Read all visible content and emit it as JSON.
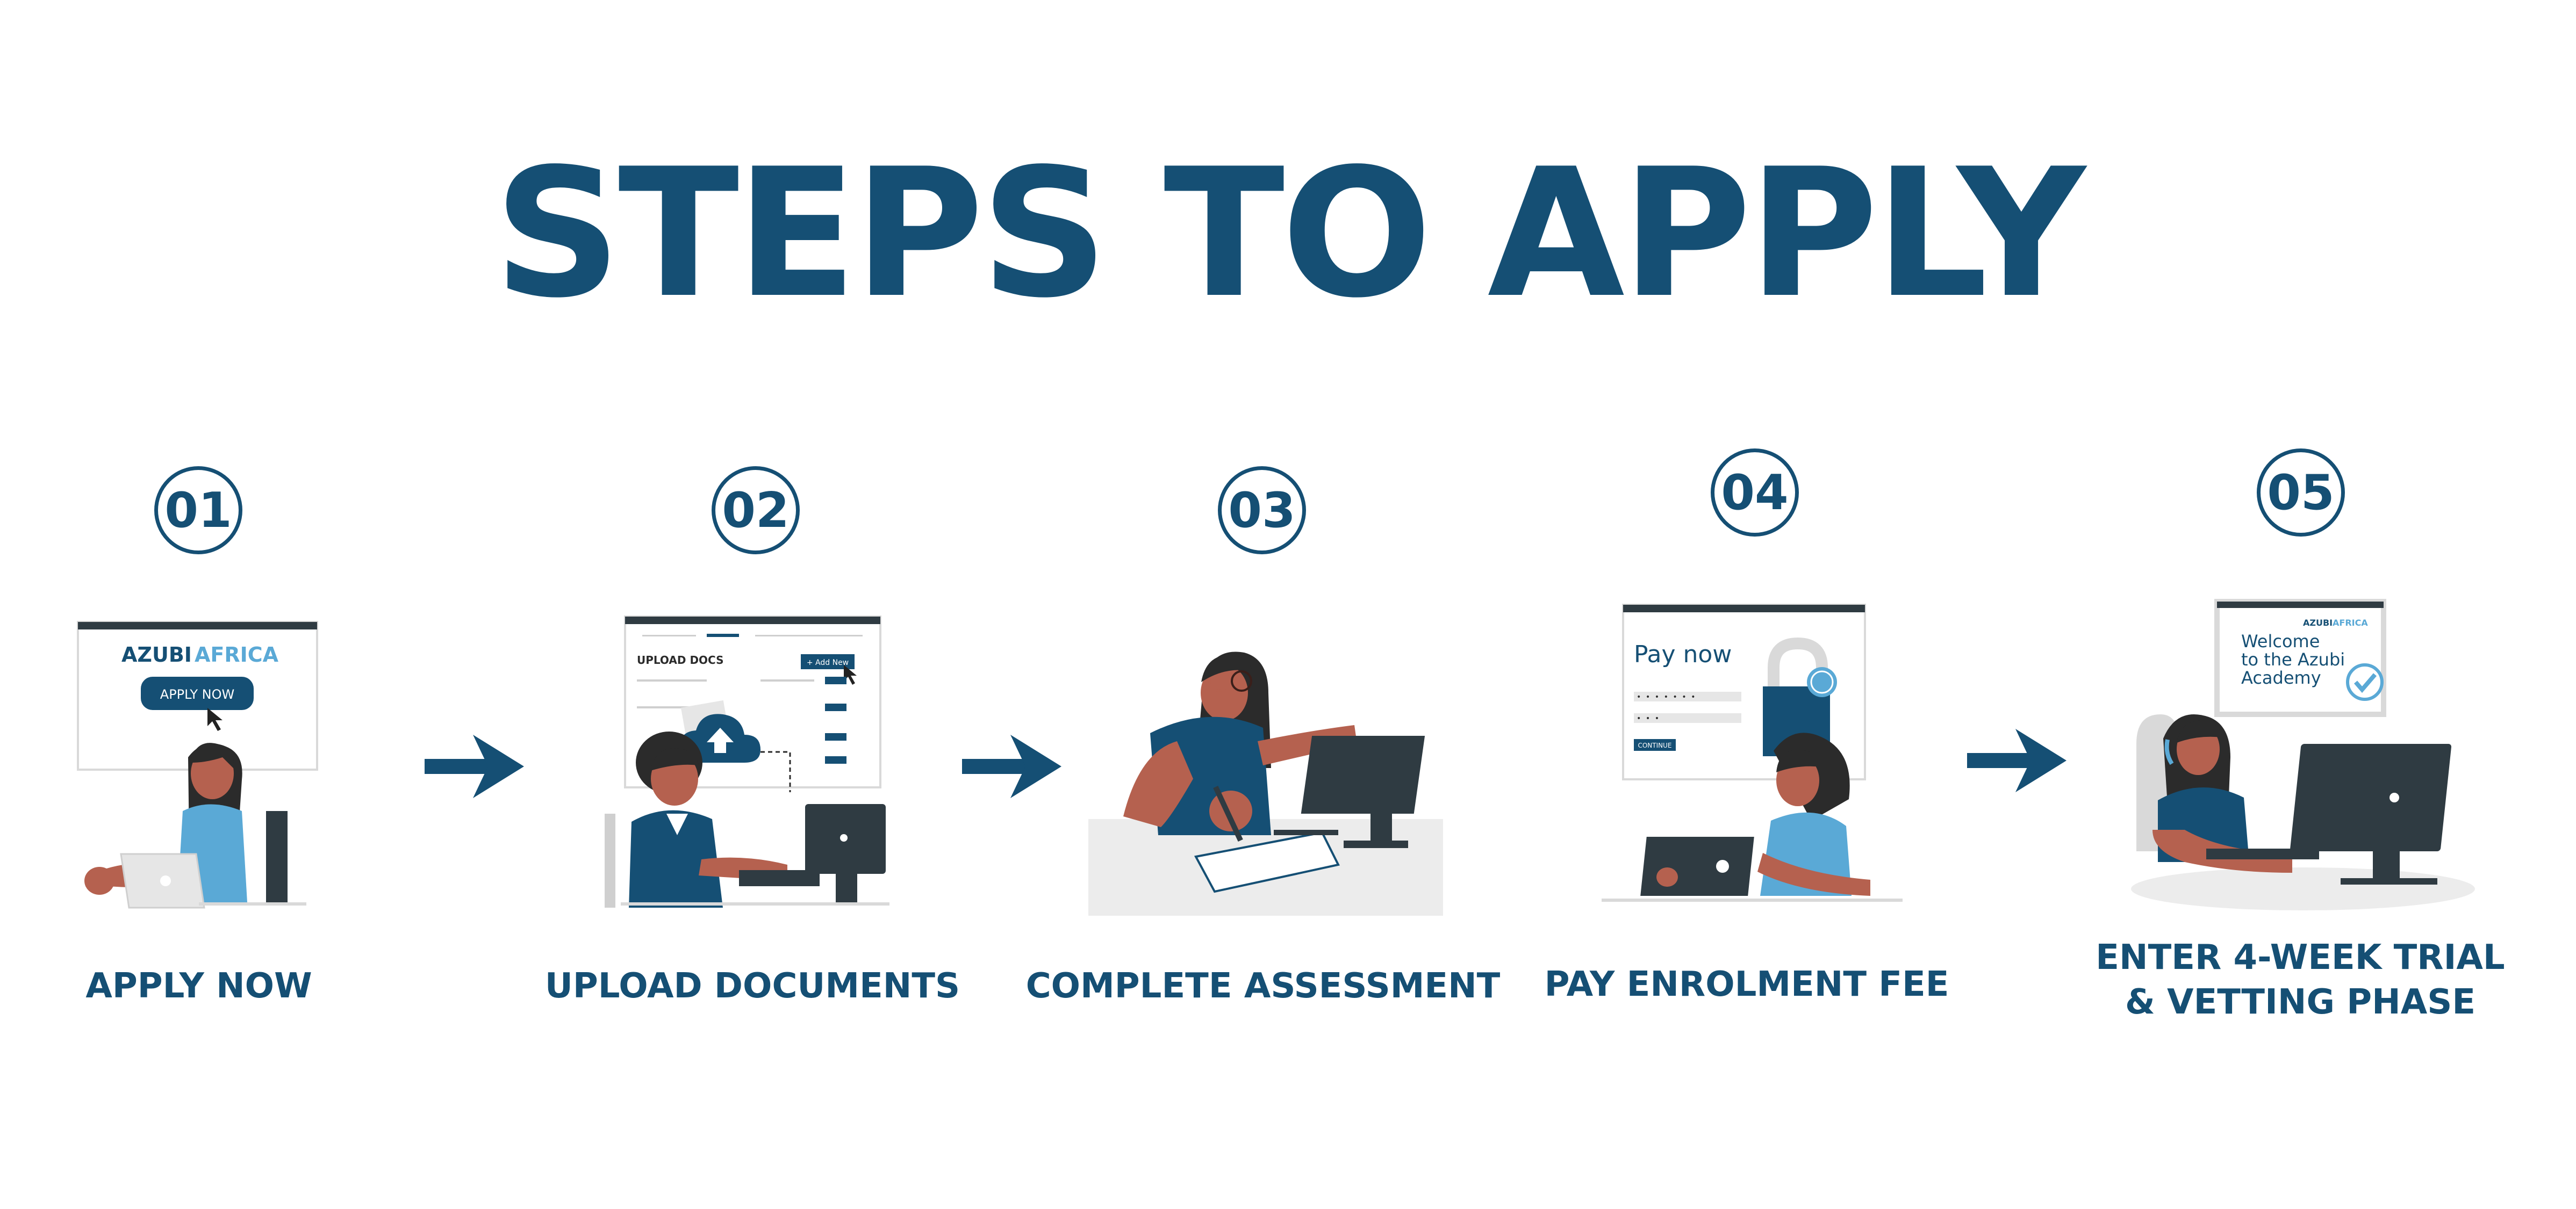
{
  "title": "STEPS TO APPLY",
  "colors": {
    "primary": "#154f74",
    "skin": "#b5614f",
    "dark": "#2f3b42",
    "light": "#e6e6e6"
  },
  "steps": [
    {
      "number": "01",
      "label": "APPLY NOW",
      "illustration": {
        "brand": "AZUBI",
        "brand_accent": "AFRICA",
        "button": "APPLY NOW"
      }
    },
    {
      "number": "02",
      "label": "UPLOAD DOCUMENTS",
      "illustration": {
        "heading": "UPLOAD DOCS",
        "button": "+ Add New"
      }
    },
    {
      "number": "03",
      "label": "COMPLETE ASSESSMENT",
      "illustration": {}
    },
    {
      "number": "04",
      "label": "PAY ENROLMENT FEE",
      "illustration": {
        "heading": "Pay now",
        "button": "CONTINUE",
        "code_mask": "• • • • • • •",
        "pin_mask": "• • •"
      }
    },
    {
      "number": "05",
      "label_line1": "ENTER 4-WEEK TRIAL",
      "label_line2": "& VETTING PHASE",
      "illustration": {
        "brand": "AZUBI",
        "brand_accent": "AFRICA",
        "line1": "Welcome",
        "line2": "to the Azubi",
        "line3": "Academy"
      }
    }
  ],
  "icons": [
    "arrow-right-icon",
    "cloud-upload-icon",
    "lock-icon",
    "dollar-coin-icon",
    "checkmark-icon",
    "cursor-icon"
  ]
}
